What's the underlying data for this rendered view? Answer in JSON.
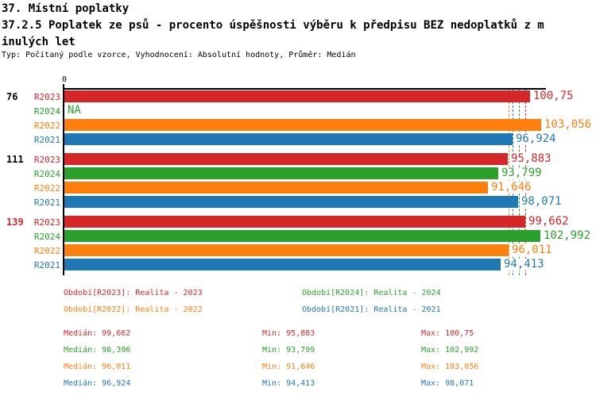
{
  "header": {
    "title": "37. Místní poplatky",
    "subtitle_line1": "37.2.5 Poplatek ze psů - procento úspěšnosti výběru k předpisu BEZ nedoplatků z m",
    "subtitle_line2": "inulých let",
    "meta": "Typ: Počítaný podle vzorce, Vyhodnocení: Absolutní hodnoty, Průměr: Medián"
  },
  "colors": {
    "R2023": "#d62728",
    "R2024": "#2ca02c",
    "R2022": "#ff7f0e",
    "R2021": "#1f77b4",
    "axis": "#000000",
    "group_label": "#000000",
    "highlight_group": "#d62728"
  },
  "chart_data": {
    "type": "bar",
    "orientation": "horizontal",
    "grid": false,
    "x_axis": {
      "origin_label": "0",
      "min": 0,
      "max": 104
    },
    "series_legend": [
      {
        "series": "R2023",
        "label": "Období[R2023]: Realita - 2023"
      },
      {
        "series": "R2024",
        "label": "Období[R2024]: Realita - 2024"
      },
      {
        "series": "R2022",
        "label": "Období[R2022]: Realita - 2022"
      },
      {
        "series": "R2021",
        "label": "Období[R2021]: Realita - 2021"
      }
    ],
    "legend_layout": [
      [
        "R2023",
        "R2024"
      ],
      [
        "R2022",
        "R2021"
      ]
    ],
    "groups": [
      {
        "label": "76",
        "highlighted": false,
        "bars": [
          {
            "series": "R2023",
            "value": 100.75,
            "value_label": "100,75"
          },
          {
            "series": "R2024",
            "value": null,
            "value_label": "NA"
          },
          {
            "series": "R2022",
            "value": 103.056,
            "value_label": "103,056"
          },
          {
            "series": "R2021",
            "value": 96.924,
            "value_label": "96,924"
          }
        ]
      },
      {
        "label": "111",
        "highlighted": false,
        "bars": [
          {
            "series": "R2023",
            "value": 95.883,
            "value_label": "95,883"
          },
          {
            "series": "R2024",
            "value": 93.799,
            "value_label": "93,799"
          },
          {
            "series": "R2022",
            "value": 91.646,
            "value_label": "91,646"
          },
          {
            "series": "R2021",
            "value": 98.071,
            "value_label": "98,071"
          }
        ]
      },
      {
        "label": "139",
        "highlighted": true,
        "bars": [
          {
            "series": "R2023",
            "value": 99.662,
            "value_label": "99,662"
          },
          {
            "series": "R2024",
            "value": 102.992,
            "value_label": "102,992"
          },
          {
            "series": "R2022",
            "value": 96.011,
            "value_label": "96,011"
          },
          {
            "series": "R2021",
            "value": 94.413,
            "value_label": "94,413"
          }
        ]
      }
    ],
    "median_lines": [
      {
        "series": "R2022",
        "value": 96.011
      },
      {
        "series": "R2021",
        "value": 96.924
      },
      {
        "series": "R2024",
        "value": 98.396
      },
      {
        "series": "R2023",
        "value": 99.662
      }
    ],
    "stats_labels": {
      "median": "Medián:",
      "min": "Min:",
      "max": "Max:"
    },
    "stats": [
      {
        "series": "R2023",
        "median": "99,662",
        "min": "95,883",
        "max": "100,75"
      },
      {
        "series": "R2024",
        "median": "98,396",
        "min": "93,799",
        "max": "102,992"
      },
      {
        "series": "R2022",
        "median": "96,011",
        "min": "91,646",
        "max": "103,056"
      },
      {
        "series": "R2021",
        "median": "96,924",
        "min": "94,413",
        "max": "98,071"
      }
    ]
  }
}
